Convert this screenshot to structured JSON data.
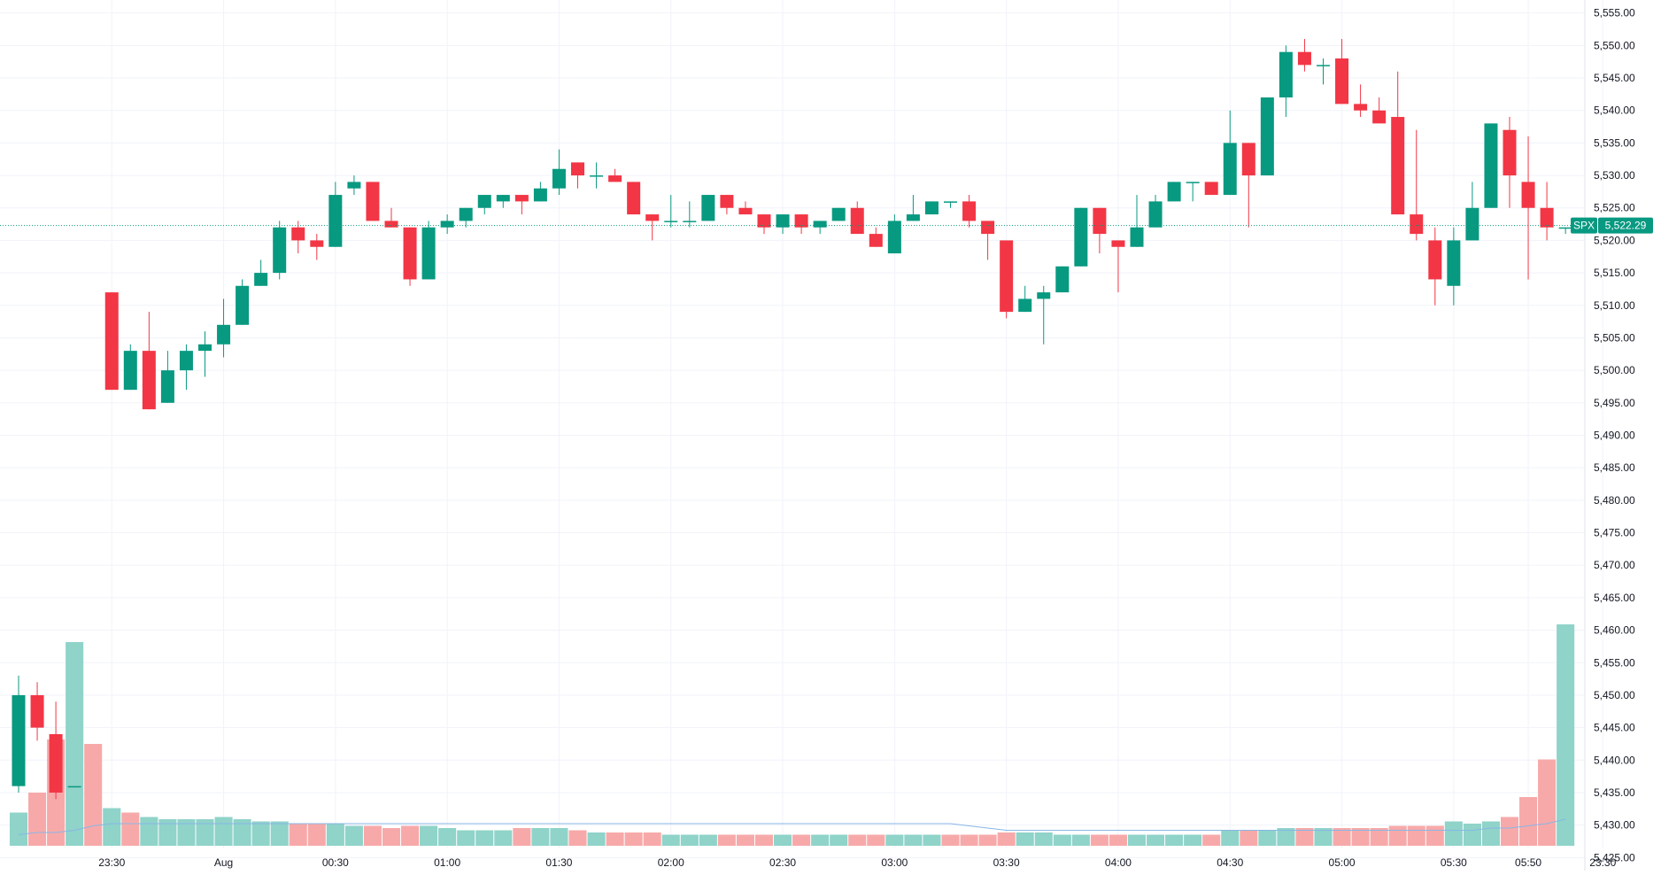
{
  "chart_data": {
    "type": "candlestick",
    "symbol_label": "SPX",
    "last_price_label": "5,522.29",
    "last_price": 5522.29,
    "price_range": [
      5423,
      5557
    ],
    "grid": true,
    "colors": {
      "up": "#089981",
      "down": "#f23645",
      "up_volume": "#8fd3c9",
      "down_volume": "#f7a9a9",
      "volume_ma": "#88b6e6",
      "grid": "#f0f3fa",
      "axis_text": "#131722",
      "last_price_line": "#089981"
    },
    "y_ticks": [
      "5,555.00",
      "5,550.00",
      "5,545.00",
      "5,540.00",
      "5,535.00",
      "5,530.00",
      "5,525.00",
      "5,520.00",
      "5,515.00",
      "5,510.00",
      "5,505.00",
      "5,500.00",
      "5,495.00",
      "5,490.00",
      "5,485.00",
      "5,480.00",
      "5,475.00",
      "5,470.00",
      "5,465.00",
      "5,460.00",
      "5,455.00",
      "5,450.00",
      "5,445.00",
      "5,440.00",
      "5,435.00",
      "5,430.00",
      "5,425.00"
    ],
    "y_tick_values": [
      5555,
      5550,
      5545,
      5540,
      5535,
      5530,
      5525,
      5520,
      5515,
      5510,
      5505,
      5500,
      5495,
      5490,
      5485,
      5480,
      5475,
      5470,
      5465,
      5460,
      5455,
      5450,
      5445,
      5440,
      5435,
      5430,
      5425
    ],
    "x_ticks": [
      {
        "label": "23:30",
        "index": 5
      },
      {
        "label": "Aug",
        "index": 11
      },
      {
        "label": "00:30",
        "index": 17
      },
      {
        "label": "01:00",
        "index": 23
      },
      {
        "label": "01:30",
        "index": 29
      },
      {
        "label": "02:00",
        "index": 35
      },
      {
        "label": "02:30",
        "index": 41
      },
      {
        "label": "03:00",
        "index": 47
      },
      {
        "label": "03:30",
        "index": 53
      },
      {
        "label": "04:00",
        "index": 59
      },
      {
        "label": "04:30",
        "index": 65
      },
      {
        "label": "05:00",
        "index": 71
      },
      {
        "label": "05:30",
        "index": 77
      },
      {
        "label": "05:50",
        "index": 81
      },
      {
        "label": "23:30",
        "index": 85
      }
    ],
    "candles": [
      {
        "o": 5436,
        "h": 5453,
        "l": 5435,
        "c": 5450
      },
      {
        "o": 5450,
        "h": 5452,
        "l": 5443,
        "c": 5445
      },
      {
        "o": 5444,
        "h": 5449,
        "l": 5434,
        "c": 5435
      },
      {
        "o": 5436,
        "h": 5436,
        "l": 5436,
        "c": 5436
      },
      {
        "o": null,
        "h": null,
        "l": null,
        "c": null
      },
      {
        "o": 5512,
        "h": 5512,
        "l": 5497,
        "c": 5497
      },
      {
        "o": 5497,
        "h": 5504,
        "l": 5497,
        "c": 5503
      },
      {
        "o": 5503,
        "h": 5509,
        "l": 5494,
        "c": 5494
      },
      {
        "o": 5495,
        "h": 5503,
        "l": 5495,
        "c": 5500
      },
      {
        "o": 5500,
        "h": 5504,
        "l": 5497,
        "c": 5503
      },
      {
        "o": 5503,
        "h": 5506,
        "l": 5499,
        "c": 5504
      },
      {
        "o": 5504,
        "h": 5511,
        "l": 5502,
        "c": 5507
      },
      {
        "o": 5507,
        "h": 5514,
        "l": 5507,
        "c": 5513
      },
      {
        "o": 5513,
        "h": 5517,
        "l": 5513,
        "c": 5515
      },
      {
        "o": 5515,
        "h": 5523,
        "l": 5514,
        "c": 5522
      },
      {
        "o": 5522,
        "h": 5523,
        "l": 5518,
        "c": 5520
      },
      {
        "o": 5520,
        "h": 5521,
        "l": 5517,
        "c": 5519
      },
      {
        "o": 5519,
        "h": 5529,
        "l": 5519,
        "c": 5527
      },
      {
        "o": 5528,
        "h": 5530,
        "l": 5527,
        "c": 5529
      },
      {
        "o": 5529,
        "h": 5529,
        "l": 5523,
        "c": 5523
      },
      {
        "o": 5523,
        "h": 5525,
        "l": 5522,
        "c": 5522
      },
      {
        "o": 5522,
        "h": 5522,
        "l": 5513,
        "c": 5514
      },
      {
        "o": 5514,
        "h": 5523,
        "l": 5514,
        "c": 5522
      },
      {
        "o": 5522,
        "h": 5524,
        "l": 5521,
        "c": 5523
      },
      {
        "o": 5523,
        "h": 5525,
        "l": 5522,
        "c": 5525
      },
      {
        "o": 5525,
        "h": 5527,
        "l": 5524,
        "c": 5527
      },
      {
        "o": 5526,
        "h": 5527,
        "l": 5525,
        "c": 5527
      },
      {
        "o": 5527,
        "h": 5527,
        "l": 5524,
        "c": 5526
      },
      {
        "o": 5526,
        "h": 5529,
        "l": 5526,
        "c": 5528
      },
      {
        "o": 5528,
        "h": 5534,
        "l": 5527,
        "c": 5531
      },
      {
        "o": 5532,
        "h": 5532,
        "l": 5528,
        "c": 5530
      },
      {
        "o": 5530,
        "h": 5532,
        "l": 5528,
        "c": 5530
      },
      {
        "o": 5530,
        "h": 5531,
        "l": 5530,
        "c": 5529
      },
      {
        "o": 5529,
        "h": 5529,
        "l": 5524,
        "c": 5524
      },
      {
        "o": 5524,
        "h": 5524,
        "l": 5520,
        "c": 5523
      },
      {
        "o": 5523,
        "h": 5527,
        "l": 5522,
        "c": 5523
      },
      {
        "o": 5523,
        "h": 5526,
        "l": 5522,
        "c": 5523
      },
      {
        "o": 5523,
        "h": 5527,
        "l": 5523,
        "c": 5527
      },
      {
        "o": 5527,
        "h": 5527,
        "l": 5524,
        "c": 5525
      },
      {
        "o": 5525,
        "h": 5526,
        "l": 5524,
        "c": 5524
      },
      {
        "o": 5524,
        "h": 5524,
        "l": 5521,
        "c": 5522
      },
      {
        "o": 5522,
        "h": 5524,
        "l": 5521,
        "c": 5524
      },
      {
        "o": 5524,
        "h": 5524,
        "l": 5521,
        "c": 5522
      },
      {
        "o": 5522,
        "h": 5523,
        "l": 5521,
        "c": 5523
      },
      {
        "o": 5523,
        "h": 5525,
        "l": 5523,
        "c": 5525
      },
      {
        "o": 5525,
        "h": 5526,
        "l": 5521,
        "c": 5521
      },
      {
        "o": 5521,
        "h": 5522,
        "l": 5519,
        "c": 5519
      },
      {
        "o": 5518,
        "h": 5524,
        "l": 5518,
        "c": 5523
      },
      {
        "o": 5523,
        "h": 5527,
        "l": 5523,
        "c": 5524
      },
      {
        "o": 5524,
        "h": 5526,
        "l": 5524,
        "c": 5526
      },
      {
        "o": 5526,
        "h": 5526,
        "l": 5525,
        "c": 5526
      },
      {
        "o": 5526,
        "h": 5527,
        "l": 5522,
        "c": 5523
      },
      {
        "o": 5523,
        "h": 5523,
        "l": 5517,
        "c": 5521
      },
      {
        "o": 5520,
        "h": 5520,
        "l": 5508,
        "c": 5509
      },
      {
        "o": 5509,
        "h": 5513,
        "l": 5509,
        "c": 5511
      },
      {
        "o": 5511,
        "h": 5513,
        "l": 5504,
        "c": 5512
      },
      {
        "o": 5512,
        "h": 5516,
        "l": 5512,
        "c": 5516
      },
      {
        "o": 5516,
        "h": 5525,
        "l": 5516,
        "c": 5525
      },
      {
        "o": 5525,
        "h": 5525,
        "l": 5518,
        "c": 5521
      },
      {
        "o": 5520,
        "h": 5520,
        "l": 5512,
        "c": 5519
      },
      {
        "o": 5519,
        "h": 5527,
        "l": 5519,
        "c": 5522
      },
      {
        "o": 5522,
        "h": 5527,
        "l": 5522,
        "c": 5526
      },
      {
        "o": 5526,
        "h": 5529,
        "l": 5526,
        "c": 5529
      },
      {
        "o": 5529,
        "h": 5529,
        "l": 5526,
        "c": 5529
      },
      {
        "o": 5529,
        "h": 5529,
        "l": 5527,
        "c": 5527
      },
      {
        "o": 5527,
        "h": 5540,
        "l": 5527,
        "c": 5535
      },
      {
        "o": 5535,
        "h": 5535,
        "l": 5522,
        "c": 5530
      },
      {
        "o": 5530,
        "h": 5542,
        "l": 5530,
        "c": 5542
      },
      {
        "o": 5542,
        "h": 5550,
        "l": 5539,
        "c": 5549
      },
      {
        "o": 5549,
        "h": 5551,
        "l": 5546,
        "c": 5547
      },
      {
        "o": 5547,
        "h": 5548,
        "l": 5544,
        "c": 5547
      },
      {
        "o": 5548,
        "h": 5551,
        "l": 5541,
        "c": 5541
      },
      {
        "o": 5541,
        "h": 5544,
        "l": 5539,
        "c": 5540
      },
      {
        "o": 5540,
        "h": 5542,
        "l": 5538,
        "c": 5538
      },
      {
        "o": 5539,
        "h": 5546,
        "l": 5524,
        "c": 5524
      },
      {
        "o": 5524,
        "h": 5537,
        "l": 5520,
        "c": 5521
      },
      {
        "o": 5520,
        "h": 5522,
        "l": 5510,
        "c": 5514
      },
      {
        "o": 5513,
        "h": 5522,
        "l": 5510,
        "c": 5520
      },
      {
        "o": 5520,
        "h": 5529,
        "l": 5520,
        "c": 5525
      },
      {
        "o": 5525,
        "h": 5538,
        "l": 5525,
        "c": 5538
      },
      {
        "o": 5537,
        "h": 5539,
        "l": 5525,
        "c": 5530
      },
      {
        "o": 5529,
        "h": 5536,
        "l": 5514,
        "c": 5525
      },
      {
        "o": 5525,
        "h": 5529,
        "l": 5520,
        "c": 5522
      },
      {
        "o": 5522,
        "h": 5522,
        "l": 5521,
        "c": 5522
      }
    ],
    "volume": [
      {
        "v": 0.15,
        "up": true
      },
      {
        "v": 0.24,
        "up": false
      },
      {
        "v": 0.48,
        "up": false
      },
      {
        "v": 0.92,
        "up": true
      },
      {
        "v": 0.46,
        "up": false
      },
      {
        "v": 0.17,
        "up": true
      },
      {
        "v": 0.15,
        "up": false
      },
      {
        "v": 0.13,
        "up": true
      },
      {
        "v": 0.12,
        "up": true
      },
      {
        "v": 0.12,
        "up": true
      },
      {
        "v": 0.12,
        "up": true
      },
      {
        "v": 0.13,
        "up": true
      },
      {
        "v": 0.12,
        "up": true
      },
      {
        "v": 0.11,
        "up": true
      },
      {
        "v": 0.11,
        "up": true
      },
      {
        "v": 0.1,
        "up": false
      },
      {
        "v": 0.1,
        "up": false
      },
      {
        "v": 0.1,
        "up": true
      },
      {
        "v": 0.09,
        "up": true
      },
      {
        "v": 0.09,
        "up": false
      },
      {
        "v": 0.08,
        "up": false
      },
      {
        "v": 0.09,
        "up": false
      },
      {
        "v": 0.09,
        "up": true
      },
      {
        "v": 0.08,
        "up": true
      },
      {
        "v": 0.07,
        "up": true
      },
      {
        "v": 0.07,
        "up": true
      },
      {
        "v": 0.07,
        "up": true
      },
      {
        "v": 0.08,
        "up": false
      },
      {
        "v": 0.08,
        "up": true
      },
      {
        "v": 0.08,
        "up": true
      },
      {
        "v": 0.07,
        "up": false
      },
      {
        "v": 0.06,
        "up": true
      },
      {
        "v": 0.06,
        "up": false
      },
      {
        "v": 0.06,
        "up": false
      },
      {
        "v": 0.06,
        "up": false
      },
      {
        "v": 0.05,
        "up": true
      },
      {
        "v": 0.05,
        "up": true
      },
      {
        "v": 0.05,
        "up": true
      },
      {
        "v": 0.05,
        "up": false
      },
      {
        "v": 0.05,
        "up": false
      },
      {
        "v": 0.05,
        "up": false
      },
      {
        "v": 0.05,
        "up": true
      },
      {
        "v": 0.05,
        "up": false
      },
      {
        "v": 0.05,
        "up": true
      },
      {
        "v": 0.05,
        "up": true
      },
      {
        "v": 0.05,
        "up": false
      },
      {
        "v": 0.05,
        "up": false
      },
      {
        "v": 0.05,
        "up": true
      },
      {
        "v": 0.05,
        "up": true
      },
      {
        "v": 0.05,
        "up": true
      },
      {
        "v": 0.05,
        "up": false
      },
      {
        "v": 0.05,
        "up": false
      },
      {
        "v": 0.05,
        "up": false
      },
      {
        "v": 0.06,
        "up": false
      },
      {
        "v": 0.06,
        "up": true
      },
      {
        "v": 0.06,
        "up": true
      },
      {
        "v": 0.05,
        "up": true
      },
      {
        "v": 0.05,
        "up": true
      },
      {
        "v": 0.05,
        "up": false
      },
      {
        "v": 0.05,
        "up": false
      },
      {
        "v": 0.05,
        "up": true
      },
      {
        "v": 0.05,
        "up": true
      },
      {
        "v": 0.05,
        "up": true
      },
      {
        "v": 0.05,
        "up": true
      },
      {
        "v": 0.05,
        "up": false
      },
      {
        "v": 0.07,
        "up": true
      },
      {
        "v": 0.07,
        "up": false
      },
      {
        "v": 0.07,
        "up": true
      },
      {
        "v": 0.08,
        "up": true
      },
      {
        "v": 0.08,
        "up": false
      },
      {
        "v": 0.08,
        "up": true
      },
      {
        "v": 0.08,
        "up": false
      },
      {
        "v": 0.08,
        "up": false
      },
      {
        "v": 0.08,
        "up": false
      },
      {
        "v": 0.09,
        "up": false
      },
      {
        "v": 0.09,
        "up": false
      },
      {
        "v": 0.09,
        "up": false
      },
      {
        "v": 0.11,
        "up": true
      },
      {
        "v": 0.1,
        "up": true
      },
      {
        "v": 0.11,
        "up": true
      },
      {
        "v": 0.13,
        "up": false
      },
      {
        "v": 0.22,
        "up": false
      },
      {
        "v": 0.39,
        "up": false
      },
      {
        "v": 1.0,
        "up": true
      }
    ],
    "volume_ma": [
      0.05,
      0.06,
      0.06,
      0.07,
      0.09,
      0.1,
      0.1,
      0.1,
      0.1,
      0.1,
      0.1,
      0.1,
      0.1,
      0.1,
      0.1,
      0.1,
      0.1,
      0.1,
      0.1,
      0.1,
      0.1,
      0.1,
      0.1,
      0.1,
      0.1,
      0.1,
      0.1,
      0.1,
      0.1,
      0.1,
      0.1,
      0.1,
      0.1,
      0.1,
      0.1,
      0.1,
      0.1,
      0.1,
      0.1,
      0.1,
      0.1,
      0.1,
      0.1,
      0.1,
      0.1,
      0.1,
      0.1,
      0.1,
      0.1,
      0.1,
      0.1,
      0.09,
      0.08,
      0.07,
      0.07,
      0.07,
      0.07,
      0.07,
      0.07,
      0.07,
      0.07,
      0.07,
      0.07,
      0.07,
      0.07,
      0.07,
      0.07,
      0.07,
      0.07,
      0.07,
      0.07,
      0.07,
      0.07,
      0.07,
      0.07,
      0.07,
      0.07,
      0.07,
      0.07,
      0.08,
      0.08,
      0.09,
      0.1,
      0.12
    ]
  }
}
